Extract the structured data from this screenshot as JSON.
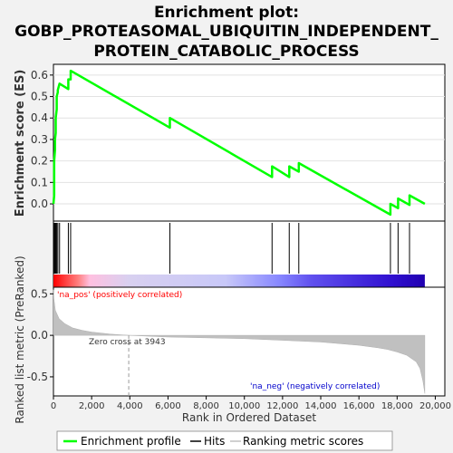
{
  "chart_data": {
    "type": "line",
    "title": "Enrichment plot:\nGOBP_PROTEASOMAL_UBIQUITIN_INDEPENDENT_\nPROTEIN_CATABOLIC_PROCESS",
    "title_lines": [
      "Enrichment plot:",
      "GOBP_PROTEASOMAL_UBIQUITIN_INDEPENDENT_",
      "PROTEIN_CATABOLIC_PROCESS"
    ],
    "xlabel": "Rank in Ordered Dataset",
    "xlim": [
      0,
      20500
    ],
    "x_ticks": [
      0,
      2000,
      4000,
      6000,
      8000,
      10000,
      12000,
      14000,
      16000,
      18000,
      20000
    ],
    "x_tick_labels": [
      "0",
      "2,000",
      "4,000",
      "6,000",
      "8,000",
      "10,000",
      "12,000",
      "14,000",
      "16,000",
      "18,000",
      "20,000"
    ],
    "es_panel": {
      "ylabel": "Enrichment score (ES)",
      "ylim": [
        -0.08,
        0.65
      ],
      "y_ticks": [
        0.0,
        0.1,
        0.2,
        0.3,
        0.4,
        0.5,
        0.6
      ],
      "y_tick_labels": [
        "0.0",
        "0.1",
        "0.2",
        "0.3",
        "0.4",
        "0.5",
        "0.6"
      ],
      "grid": true,
      "series": [
        {
          "name": "Enrichment profile",
          "color": "#00ff00",
          "x": [
            0,
            40,
            40,
            80,
            80,
            120,
            120,
            170,
            170,
            230,
            230,
            320,
            320,
            780,
            780,
            900,
            900,
            6100,
            6100,
            11450,
            11450,
            12350,
            12350,
            12850,
            12850,
            17650,
            17650,
            18050,
            18050,
            18650,
            18650,
            19450
          ],
          "y": [
            0.0,
            0.04,
            0.2,
            0.25,
            0.3,
            0.33,
            0.4,
            0.44,
            0.5,
            0.52,
            0.53,
            0.56,
            0.56,
            0.535,
            0.58,
            0.58,
            0.62,
            0.355,
            0.4,
            0.125,
            0.175,
            0.125,
            0.175,
            0.15,
            0.19,
            -0.05,
            0.0,
            -0.02,
            0.025,
            -0.005,
            0.04,
            0.0
          ]
        }
      ]
    },
    "hits": {
      "name": "Hits",
      "color": "#000000",
      "positions": [
        40,
        80,
        120,
        170,
        230,
        320,
        780,
        900,
        6100,
        11450,
        12350,
        12850,
        17650,
        18050,
        18650
      ]
    },
    "color_bar": {
      "stops": [
        {
          "x": 0,
          "color": "#ff0000"
        },
        {
          "x": 500,
          "color": "#ff3333"
        },
        {
          "x": 1300,
          "color": "#ff8080"
        },
        {
          "x": 1900,
          "color": "#ffc0e0"
        },
        {
          "x": 3943,
          "color": "#d8d0f0"
        },
        {
          "x": 9000,
          "color": "#c8c8f8"
        },
        {
          "x": 11800,
          "color": "#8888ff"
        },
        {
          "x": 13500,
          "color": "#6050ee"
        },
        {
          "x": 17700,
          "color": "#3010d0"
        },
        {
          "x": 19450,
          "color": "#2000b0"
        }
      ]
    },
    "metric_panel": {
      "ylabel": "Ranked list metric (PreRanked)",
      "ylim": [
        -0.73,
        0.58
      ],
      "y_ticks": [
        -0.5,
        0.0,
        0.5
      ],
      "y_tick_labels": [
        "-0.5",
        "0.0",
        "0.5"
      ],
      "series": [
        {
          "name": "Ranking metric scores",
          "color": "#c0c0c0",
          "x": [
            0,
            20,
            100,
            300,
            600,
            1000,
            1500,
            2000,
            3000,
            3943,
            6000,
            8000,
            10000,
            12000,
            14000,
            16000,
            17000,
            17500,
            18000,
            18500,
            19000,
            19200,
            19350,
            19450
          ],
          "y": [
            0.55,
            0.45,
            0.3,
            0.2,
            0.14,
            0.09,
            0.06,
            0.04,
            0.015,
            0.0,
            -0.02,
            -0.03,
            -0.04,
            -0.06,
            -0.08,
            -0.12,
            -0.15,
            -0.17,
            -0.2,
            -0.24,
            -0.32,
            -0.4,
            -0.55,
            -0.7
          ]
        }
      ],
      "zero_cross_x": 3943,
      "annotations": {
        "pos": "'na_pos' (positively correlated)",
        "neg": "'na_neg' (negatively correlated)",
        "zero_cross": "Zero cross at 3943"
      },
      "pos_color": "#ff0000",
      "neg_color": "#0000cc"
    },
    "legend": {
      "placement": "bottom",
      "entries": [
        "Enrichment profile",
        "Hits",
        "Ranking metric scores"
      ]
    }
  }
}
